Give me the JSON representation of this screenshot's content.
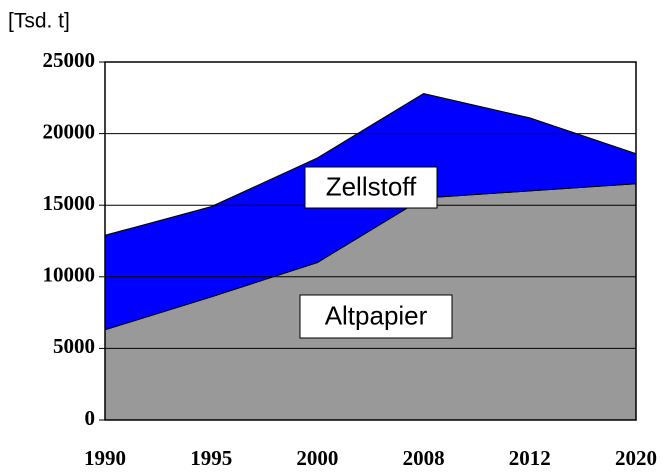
{
  "chart_data": {
    "type": "stacked_area",
    "y_label": "[Tsd. t]",
    "categories": [
      "1990",
      "1995",
      "2000",
      "2008",
      "2012",
      "2020"
    ],
    "series": [
      {
        "name": "Altpapier",
        "color": "#999999",
        "values": [
          6300,
          8600,
          11000,
          15500,
          16000,
          16500
        ]
      },
      {
        "name": "Zellstoff",
        "color": "#0000ff",
        "values": [
          6600,
          6300,
          7300,
          7300,
          5100,
          2100
        ]
      }
    ],
    "ylim": [
      0,
      25000
    ],
    "yticks": [
      0,
      5000,
      10000,
      15000,
      20000,
      25000
    ],
    "grid": true
  }
}
